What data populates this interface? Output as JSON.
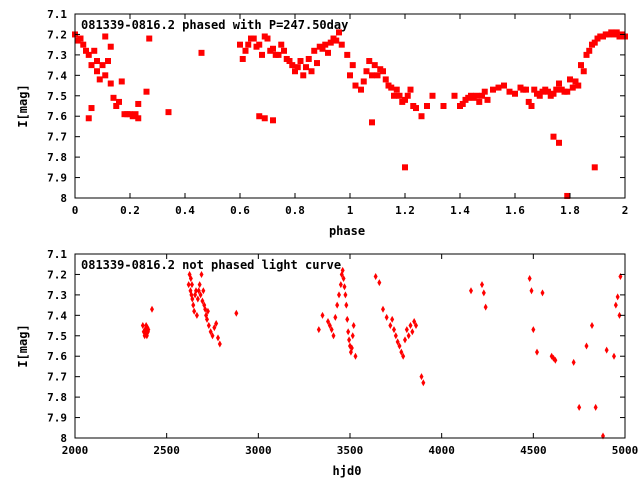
{
  "chart_data": [
    {
      "type": "scatter",
      "title": "081339-0816.2 phased with P=247.50day",
      "xlabel": "phase",
      "ylabel": "I[mag]",
      "xlim": [
        0,
        2
      ],
      "ylim": [
        7.1,
        8.0
      ],
      "y_inverted": true,
      "marker": "filled-square",
      "color": "#ff0000",
      "xticks": [
        "0",
        "0.2",
        "0.4",
        "0.6",
        "0.8",
        "1",
        "1.2",
        "1.4",
        "1.6",
        "1.8",
        "2"
      ],
      "yticks": [
        "7.1",
        "7.2",
        "7.3",
        "7.4",
        "7.5",
        "7.6",
        "7.7",
        "7.8",
        "7.9",
        "8"
      ],
      "x": [
        0.0,
        0.01,
        0.02,
        0.03,
        0.04,
        0.05,
        0.05,
        0.06,
        0.06,
        0.07,
        0.08,
        0.08,
        0.09,
        0.1,
        0.11,
        0.11,
        0.12,
        0.13,
        0.13,
        0.14,
        0.15,
        0.16,
        0.17,
        0.18,
        0.19,
        0.2,
        0.21,
        0.22,
        0.23,
        0.23,
        0.26,
        0.27,
        0.34,
        0.46,
        0.6,
        0.61,
        0.62,
        0.63,
        0.64,
        0.65,
        0.66,
        0.67,
        0.68,
        0.69,
        0.7,
        0.71,
        0.72,
        0.73,
        0.74,
        0.75,
        0.76,
        0.77,
        0.78,
        0.79,
        0.8,
        0.81,
        0.82,
        0.83,
        0.84,
        0.85,
        0.86,
        0.87,
        0.88,
        0.89,
        0.9,
        0.91,
        0.92,
        0.93,
        0.94,
        0.95,
        0.96,
        0.97,
        0.99,
        1.0,
        1.01,
        1.02,
        1.04,
        1.05,
        1.06,
        1.07,
        1.08,
        1.09,
        1.1,
        1.11,
        1.12,
        1.13,
        1.14,
        1.15,
        1.16,
        1.17,
        1.18,
        1.19,
        1.2,
        1.21,
        1.22,
        1.23,
        1.24,
        1.26,
        1.28,
        1.3,
        1.34,
        1.38,
        1.4,
        1.41,
        1.42,
        1.43,
        1.44,
        1.45,
        1.46,
        1.47,
        1.48,
        1.49,
        1.5,
        1.52,
        1.54,
        1.56,
        1.58,
        1.6,
        1.62,
        1.63,
        1.64,
        1.65,
        1.66,
        1.67,
        1.68,
        1.69,
        1.7,
        1.71,
        1.72,
        1.73,
        1.74,
        1.75,
        1.76,
        1.77,
        1.78,
        1.79,
        1.8,
        1.81,
        1.82,
        1.83,
        1.84,
        1.85,
        1.86,
        1.87,
        1.88,
        1.89,
        1.9,
        1.91,
        1.92,
        1.93,
        1.94,
        1.95,
        1.96,
        1.97,
        1.98,
        1.99,
        2.0,
        0.67,
        0.69,
        0.72,
        1.08,
        1.2,
        1.74,
        1.76,
        1.79,
        1.89
      ],
      "y": [
        7.2,
        7.23,
        7.22,
        7.25,
        7.28,
        7.3,
        7.61,
        7.35,
        7.56,
        7.28,
        7.33,
        7.38,
        7.42,
        7.35,
        7.21,
        7.4,
        7.33,
        7.44,
        7.26,
        7.51,
        7.55,
        7.53,
        7.43,
        7.59,
        7.59,
        7.59,
        7.6,
        7.59,
        7.54,
        7.61,
        7.48,
        7.22,
        7.58,
        7.29,
        7.25,
        7.32,
        7.28,
        7.25,
        7.22,
        7.22,
        7.26,
        7.25,
        7.3,
        7.21,
        7.22,
        7.28,
        7.27,
        7.3,
        7.3,
        7.25,
        7.28,
        7.32,
        7.33,
        7.35,
        7.38,
        7.36,
        7.33,
        7.4,
        7.36,
        7.32,
        7.38,
        7.28,
        7.34,
        7.26,
        7.27,
        7.25,
        7.29,
        7.24,
        7.22,
        7.23,
        7.19,
        7.25,
        7.3,
        7.4,
        7.35,
        7.45,
        7.47,
        7.43,
        7.38,
        7.33,
        7.4,
        7.35,
        7.4,
        7.37,
        7.38,
        7.42,
        7.45,
        7.46,
        7.5,
        7.47,
        7.5,
        7.53,
        7.52,
        7.5,
        7.47,
        7.55,
        7.56,
        7.6,
        7.55,
        7.5,
        7.55,
        7.5,
        7.55,
        7.54,
        7.52,
        7.51,
        7.5,
        7.51,
        7.5,
        7.53,
        7.5,
        7.48,
        7.52,
        7.47,
        7.46,
        7.45,
        7.48,
        7.49,
        7.46,
        7.47,
        7.47,
        7.53,
        7.55,
        7.47,
        7.49,
        7.5,
        7.48,
        7.47,
        7.48,
        7.5,
        7.49,
        7.47,
        7.44,
        7.47,
        7.48,
        7.48,
        7.42,
        7.46,
        7.43,
        7.45,
        7.35,
        7.38,
        7.3,
        7.28,
        7.25,
        7.24,
        7.22,
        7.21,
        7.21,
        7.2,
        7.2,
        7.19,
        7.2,
        7.19,
        7.21,
        7.2,
        7.21,
        7.6,
        7.61,
        7.62,
        7.63,
        7.85,
        7.7,
        7.73,
        7.99,
        7.85
      ]
    },
    {
      "type": "scatter",
      "title": "081339-0816.2 not phased light curve",
      "xlabel": "hjd0",
      "ylabel": "I[mag]",
      "xlim": [
        2000,
        5000
      ],
      "ylim": [
        7.1,
        8.0
      ],
      "y_inverted": true,
      "marker": "filled-diamond",
      "color": "#ff0000",
      "xticks": [
        "2000",
        "2500",
        "3000",
        "3500",
        "4000",
        "4500",
        "5000"
      ],
      "yticks": [
        "7.1",
        "7.2",
        "7.3",
        "7.4",
        "7.5",
        "7.6",
        "7.7",
        "7.8",
        "7.9",
        "8"
      ],
      "x": [
        2370,
        2375,
        2380,
        2382,
        2385,
        2388,
        2390,
        2392,
        2395,
        2398,
        2400,
        2420,
        2620,
        2625,
        2630,
        2632,
        2635,
        2638,
        2640,
        2645,
        2650,
        2655,
        2660,
        2665,
        2670,
        2675,
        2680,
        2685,
        2690,
        2695,
        2700,
        2705,
        2710,
        2715,
        2720,
        2725,
        2730,
        2740,
        2750,
        2760,
        2770,
        2780,
        2790,
        2880,
        3330,
        3350,
        3380,
        3390,
        3400,
        3410,
        3420,
        3430,
        3440,
        3450,
        3455,
        3460,
        3465,
        3470,
        3475,
        3480,
        3485,
        3490,
        3495,
        3500,
        3505,
        3510,
        3515,
        3520,
        3530,
        3640,
        3660,
        3680,
        3700,
        3720,
        3730,
        3740,
        3750,
        3760,
        3770,
        3780,
        3790,
        3800,
        3810,
        3820,
        3830,
        3840,
        3850,
        3860,
        3890,
        3900,
        4160,
        4220,
        4230,
        4240,
        4480,
        4490,
        4500,
        4520,
        4550,
        4600,
        4610,
        4620,
        4720,
        4750,
        4790,
        4820,
        4840,
        4880,
        4900,
        4940,
        4950,
        4960,
        4970,
        4975
      ],
      "y": [
        7.45,
        7.48,
        7.5,
        7.47,
        7.49,
        7.45,
        7.48,
        7.5,
        7.46,
        7.48,
        7.47,
        7.37,
        7.25,
        7.2,
        7.28,
        7.22,
        7.3,
        7.25,
        7.32,
        7.35,
        7.38,
        7.3,
        7.28,
        7.4,
        7.32,
        7.28,
        7.25,
        7.3,
        7.2,
        7.33,
        7.28,
        7.35,
        7.37,
        7.4,
        7.42,
        7.38,
        7.45,
        7.48,
        7.5,
        7.46,
        7.44,
        7.51,
        7.54,
        7.39,
        7.47,
        7.4,
        7.43,
        7.45,
        7.47,
        7.5,
        7.41,
        7.35,
        7.3,
        7.25,
        7.2,
        7.18,
        7.22,
        7.26,
        7.3,
        7.35,
        7.42,
        7.48,
        7.52,
        7.55,
        7.58,
        7.56,
        7.5,
        7.45,
        7.6,
        7.21,
        7.24,
        7.37,
        7.41,
        7.45,
        7.42,
        7.47,
        7.5,
        7.53,
        7.55,
        7.58,
        7.6,
        7.52,
        7.47,
        7.5,
        7.45,
        7.48,
        7.43,
        7.45,
        7.7,
        7.73,
        7.28,
        7.25,
        7.29,
        7.36,
        7.22,
        7.28,
        7.47,
        7.58,
        7.29,
        7.6,
        7.61,
        7.62,
        7.63,
        7.85,
        7.55,
        7.45,
        7.85,
        7.99,
        7.57,
        7.6,
        7.35,
        7.31,
        7.4,
        7.21
      ]
    }
  ]
}
